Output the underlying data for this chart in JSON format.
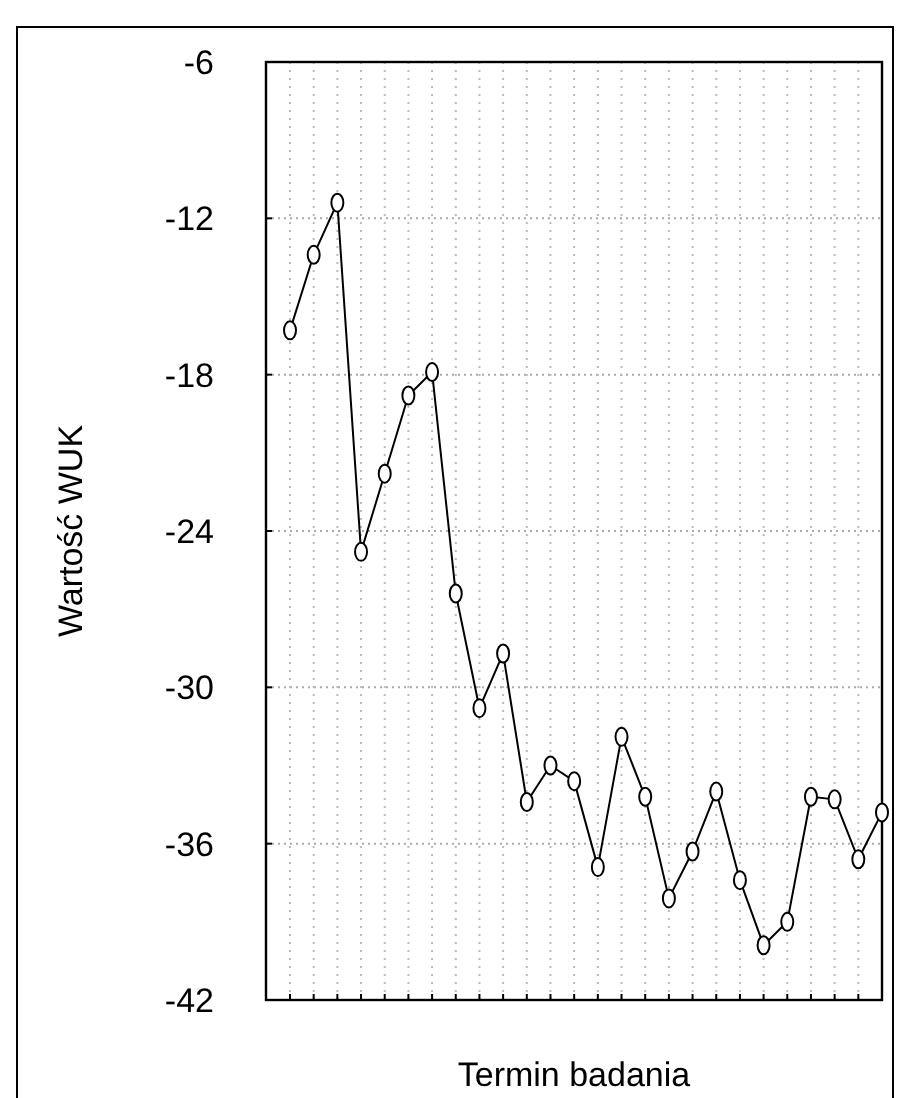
{
  "chart_data": {
    "type": "line",
    "xlabel": "Termin badania",
    "ylabel": "Wartość WUK",
    "categories": [
      null,
      null,
      null,
      null,
      null,
      null,
      null,
      null,
      null,
      null,
      null,
      null,
      null,
      null,
      null,
      null,
      null,
      null,
      null,
      null,
      null,
      null,
      null,
      null,
      null,
      null
    ],
    "series": [
      {
        "color": "#000000",
        "values": [
          -16.3,
          -13.4,
          -11.4,
          -24.8,
          -21.8,
          -18.8,
          -17.9,
          -26.4,
          -30.8,
          -28.7,
          -34.4,
          -33.0,
          -33.6,
          -36.9,
          -31.9,
          -34.2,
          -38.1,
          -36.3,
          -34.0,
          -37.4,
          -39.9,
          -39.0,
          -34.2,
          -34.3,
          -36.6,
          -34.8
        ]
      }
    ],
    "ylim": [
      -42,
      -6
    ],
    "yticks": [
      -42,
      -36,
      -30,
      -24,
      -18,
      -12,
      -6
    ],
    "grid": true,
    "marker": "circle",
    "line_style": "solid"
  }
}
